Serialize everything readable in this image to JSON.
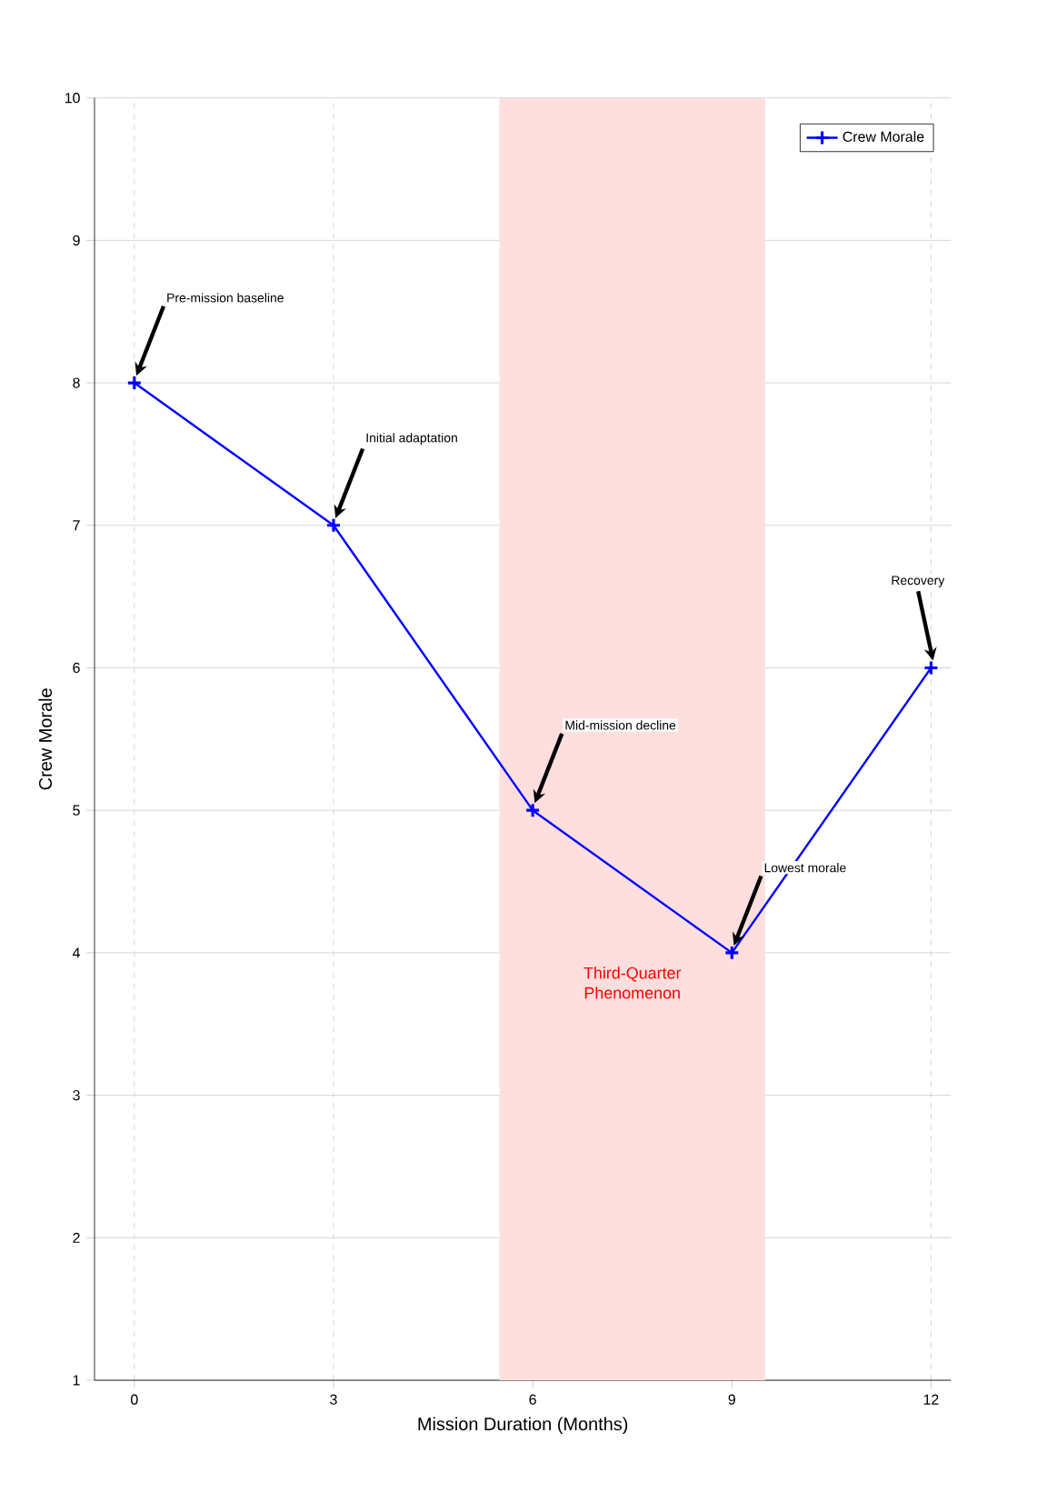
{
  "chart_data": {
    "type": "line",
    "xlabel": "Mission Duration (Months)",
    "ylabel": "Crew Morale",
    "x": [
      0,
      3,
      6,
      9,
      12
    ],
    "series": [
      {
        "name": "Crew Morale",
        "color": "#0000ff",
        "values": [
          8,
          7,
          5,
          4,
          6
        ]
      }
    ],
    "xlim": [
      -0.6,
      12.3
    ],
    "ylim": [
      1,
      10
    ],
    "xticks": [
      0,
      3,
      6,
      9,
      12
    ],
    "yticks": [
      1,
      2,
      3,
      4,
      5,
      6,
      7,
      8,
      9,
      10
    ],
    "bands": [
      {
        "axis": "x",
        "from": 5.5,
        "to": 9.5,
        "label": "Third-Quarter Phenomenon",
        "color": "#ffdede"
      }
    ],
    "annotations": [
      {
        "text": "Pre-mission baseline",
        "x": 0,
        "y": 8
      },
      {
        "text": "Initial adaptation",
        "x": 3,
        "y": 7
      },
      {
        "text": "Mid-mission decline",
        "x": 6,
        "y": 5
      },
      {
        "text": "Lowest morale",
        "x": 9,
        "y": 4
      },
      {
        "text": "Recovery",
        "x": 12,
        "y": 6
      }
    ],
    "grid": true,
    "legend": "top right",
    "marker": "cross",
    "line_style": "solid"
  }
}
